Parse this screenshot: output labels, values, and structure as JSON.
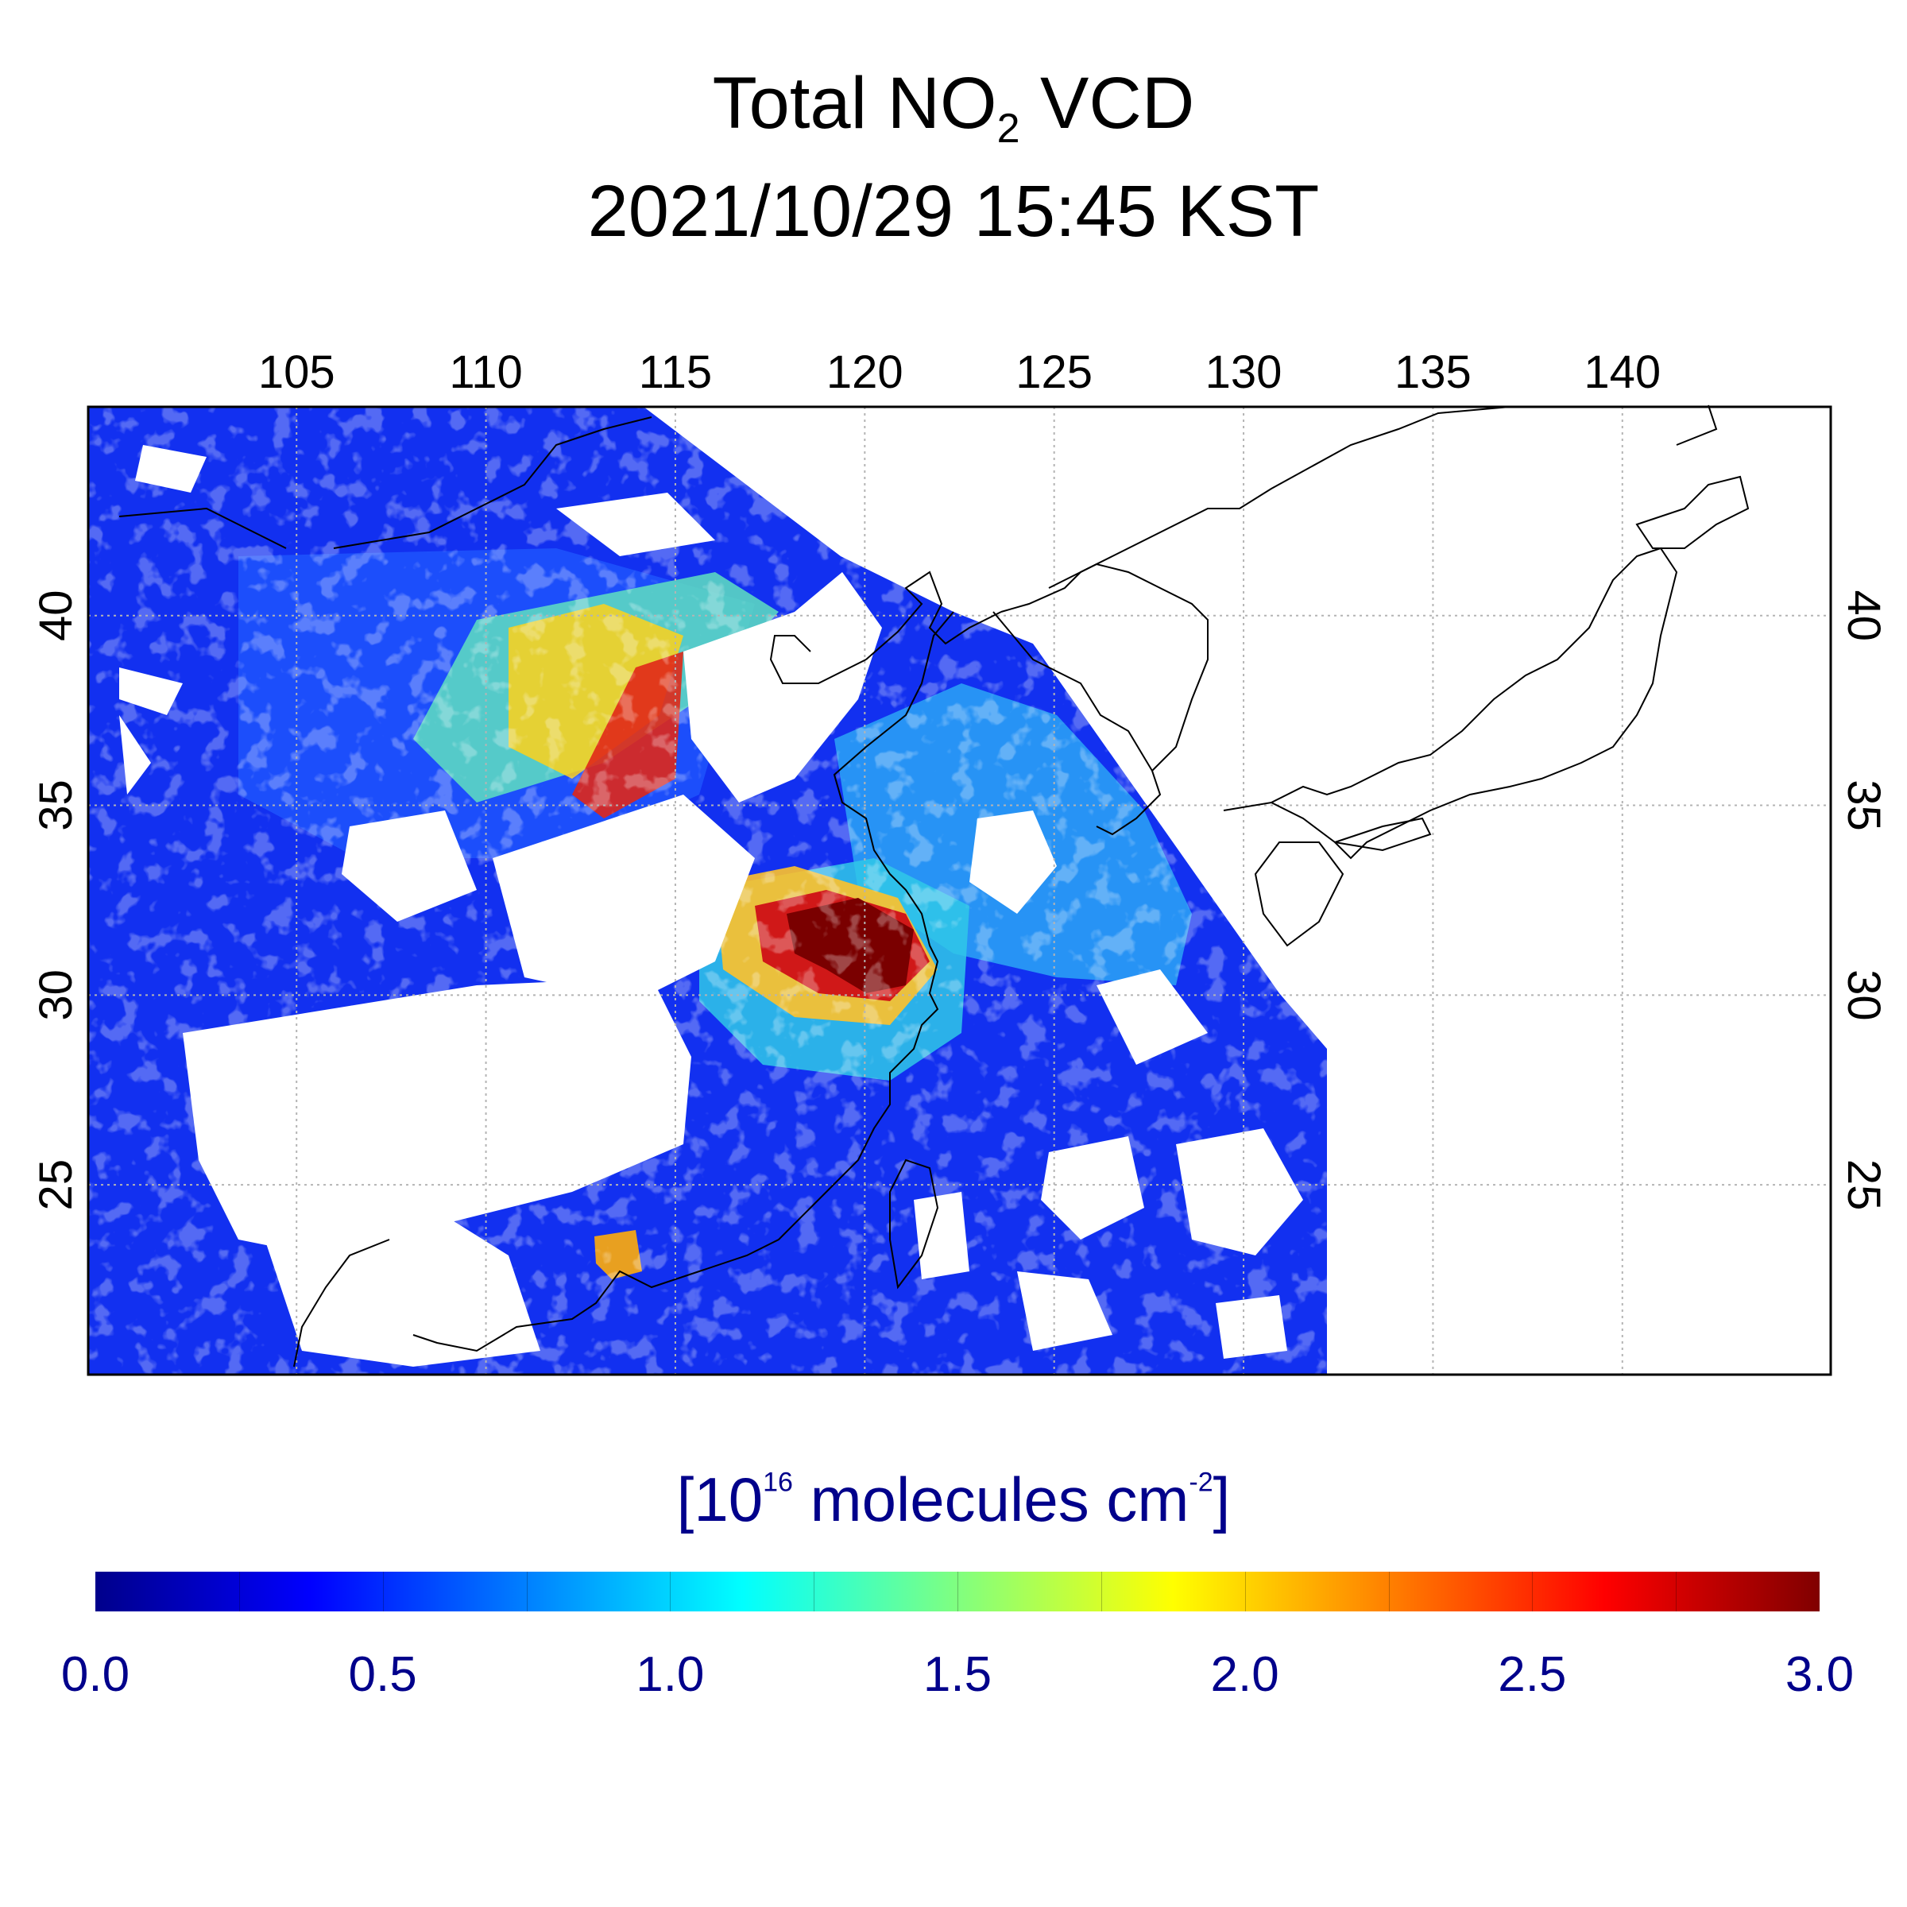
{
  "title": {
    "line1_pre": "Total NO",
    "line1_sub": "2",
    "line1_post": " VCD",
    "line2": "2021/10/29 15:45 KST"
  },
  "map": {
    "lon_range": [
      99.5,
      145.5
    ],
    "lat_range": [
      20.0,
      45.5
    ],
    "lon_ticks": [
      105,
      110,
      115,
      120,
      125,
      130,
      135,
      140
    ],
    "lat_ticks": [
      25,
      30,
      35,
      40
    ],
    "lon_tick_labels": [
      "105",
      "110",
      "115",
      "120",
      "125",
      "130",
      "135",
      "140"
    ],
    "lat_tick_labels": [
      "25",
      "30",
      "35",
      "40"
    ],
    "grid": true
  },
  "colorbar": {
    "unit_pre": "[10",
    "unit_exp": "16",
    "unit_mid": " molecules cm",
    "unit_exp2": "-2",
    "unit_post": "]",
    "min": 0.0,
    "max": 3.0,
    "tick_labels": [
      "0.0",
      "0.5",
      "1.0",
      "1.5",
      "2.0",
      "2.5",
      "3.0"
    ],
    "colors": [
      "#00008b",
      "#0000ff",
      "#0080ff",
      "#00ffff",
      "#80ff80",
      "#ffff00",
      "#ff8000",
      "#ff0000",
      "#800000"
    ]
  },
  "colors": {
    "title": "#000000",
    "colorbar_text": "#00008b",
    "coastline": "#000000",
    "grid": "#b4b4b4"
  }
}
